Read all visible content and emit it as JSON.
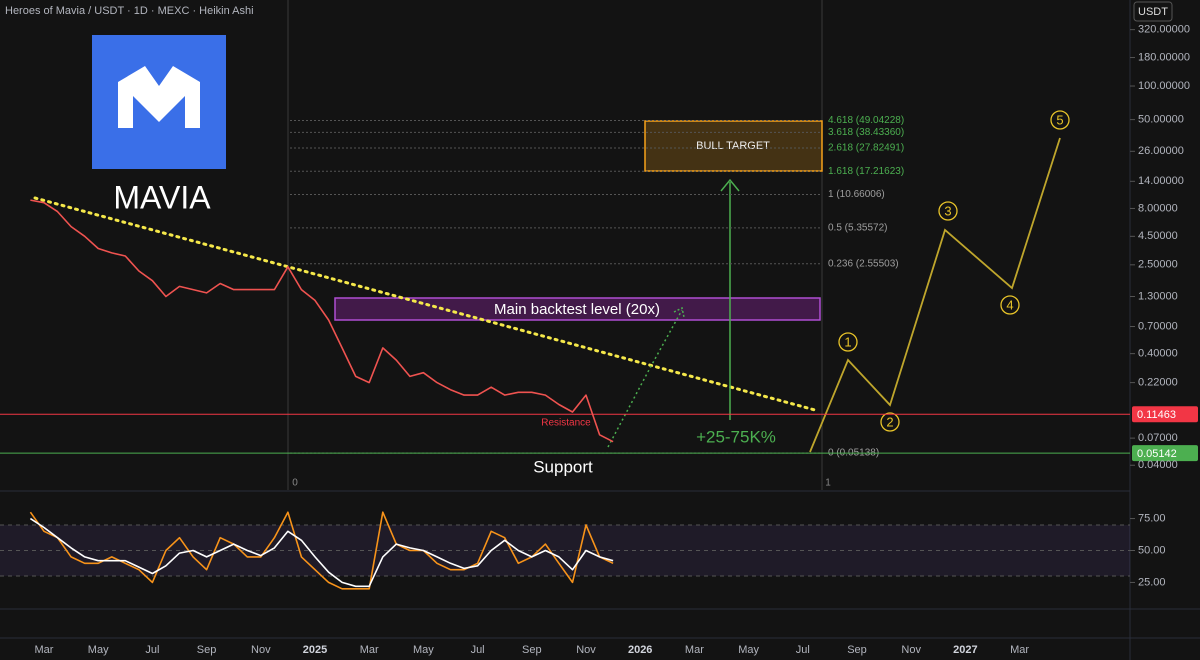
{
  "header": {
    "title": "Heroes of Mavia / USDT · 1D · MEXC · Heikin Ashi",
    "currency": "USDT",
    "logo_text": "MAVIA"
  },
  "annotations": {
    "bull_target": "BULL TARGET",
    "backtest": "Main backtest level (20x)",
    "gain": "+25-75K%",
    "support": "Support",
    "resistance": "Resistance",
    "fib_start": "0",
    "fib_end": "1",
    "waves": [
      "1",
      "2",
      "3",
      "4",
      "5"
    ]
  },
  "chart_data": [
    {
      "type": "line",
      "log_scale": true,
      "grid": false,
      "categories": [
        null,
        null,
        "Mar",
        null,
        null,
        null,
        "May",
        null,
        null,
        null,
        "Jul",
        null,
        null,
        null,
        "Sep",
        null,
        null,
        null,
        "Nov",
        null,
        null,
        null,
        "2025",
        null,
        null,
        null,
        "Mar",
        null,
        null,
        null,
        "May",
        null,
        null,
        null,
        "Jul",
        null,
        null,
        null,
        "Sep",
        null,
        null,
        null,
        "Nov",
        null,
        null,
        null,
        "2026",
        null,
        null,
        null,
        "Mar",
        null,
        null,
        null,
        "May",
        null,
        null,
        null,
        "Jul",
        null,
        null,
        null,
        "Sep",
        null,
        null,
        null,
        "Nov",
        null,
        null,
        null,
        "2027",
        null,
        null,
        null,
        "Mar",
        null,
        null,
        null
      ],
      "series": [
        {
          "color": "#ef5350",
          "values": [
            null,
            9.5,
            9.0,
            7.5,
            5.5,
            4.5,
            3.5,
            3.2,
            3.0,
            2.2,
            1.8,
            1.3,
            1.6,
            1.5,
            1.4,
            1.7,
            1.5,
            1.5,
            1.5,
            1.5,
            2.4,
            1.5,
            1.2,
            0.8,
            0.45,
            0.25,
            0.22,
            0.45,
            0.35,
            0.25,
            0.27,
            0.22,
            0.19,
            0.17,
            0.17,
            0.2,
            0.17,
            0.18,
            0.18,
            0.17,
            0.14,
            0.12,
            0.17,
            0.075,
            0.065,
            null,
            null,
            null,
            null,
            null,
            null,
            null,
            null,
            null,
            null,
            null,
            null,
            null,
            null,
            null,
            null,
            null,
            null,
            null,
            null,
            null,
            null,
            null,
            null,
            null,
            null,
            null,
            null,
            null,
            null,
            null,
            null,
            null
          ]
        }
      ],
      "ylim": [
        0.024,
        590
      ],
      "yticks": [
        {
          "value": 320,
          "label": "320.00000"
        },
        {
          "value": 180,
          "label": "180.00000"
        },
        {
          "value": 100,
          "label": "100.00000"
        },
        {
          "value": 50,
          "label": "50.00000"
        },
        {
          "value": 26,
          "label": "26.00000"
        },
        {
          "value": 14,
          "label": "14.00000"
        },
        {
          "value": 8,
          "label": "8.00000"
        },
        {
          "value": 4.5,
          "label": "4.50000"
        },
        {
          "value": 2.5,
          "label": "2.50000"
        },
        {
          "value": 1.3,
          "label": "1.30000"
        },
        {
          "value": 0.7,
          "label": "0.70000"
        },
        {
          "value": 0.4,
          "label": "0.40000"
        },
        {
          "value": 0.22,
          "label": "0.22000"
        },
        {
          "value": 0.07,
          "label": "0.07000"
        },
        {
          "value": 0.04,
          "label": "0.04000"
        }
      ],
      "price_lines": [
        {
          "value": 0.11463,
          "color": "#f23645"
        },
        {
          "value": 0.05142,
          "color": "#4caf50"
        }
      ],
      "fib_levels": [
        {
          "value": 49.04228,
          "label": "4.618 (49.04228)",
          "color": "#4caf50"
        },
        {
          "value": 38.4336,
          "label": "3.618 (38.43360)",
          "color": "#4caf50"
        },
        {
          "value": 27.82491,
          "label": "2.618 (27.82491)",
          "color": "#4caf50"
        },
        {
          "value": 17.21623,
          "label": "1.618 (17.21623)",
          "color": "#4caf50"
        },
        {
          "value": 10.66006,
          "label": "1 (10.66006)",
          "color": "#9e9e9e"
        },
        {
          "value": 5.35572,
          "label": "0.5 (5.35572)",
          "color": "#9e9e9e"
        },
        {
          "value": 2.55503,
          "label": "0.236 (2.55503)",
          "color": "#9e9e9e"
        },
        {
          "value": 0.05138,
          "label": "0 (0.05138)",
          "color": "#9e9e9e"
        }
      ]
    },
    {
      "type": "line",
      "series": [
        {
          "color": "#f7931a",
          "values": [
            null,
            80,
            65,
            60,
            45,
            40,
            40,
            45,
            40,
            35,
            25,
            50,
            60,
            45,
            35,
            60,
            55,
            45,
            45,
            60,
            80,
            45,
            35,
            25,
            20,
            20,
            20,
            80,
            55,
            50,
            50,
            40,
            35,
            35,
            40,
            65,
            60,
            40,
            45,
            55,
            40,
            25,
            70,
            45,
            40,
            null,
            null,
            null,
            null,
            null,
            null,
            null,
            null,
            null,
            null,
            null,
            null,
            null,
            null,
            null,
            null,
            null,
            null,
            null,
            null,
            null,
            null,
            null,
            null,
            null,
            null,
            null,
            null,
            null,
            null,
            null,
            null,
            null
          ]
        },
        {
          "color": "#ffffff",
          "values": [
            null,
            75,
            68,
            60,
            52,
            45,
            42,
            42,
            42,
            37,
            32,
            38,
            48,
            50,
            45,
            50,
            55,
            50,
            46,
            52,
            65,
            58,
            45,
            33,
            25,
            22,
            22,
            45,
            55,
            52,
            50,
            45,
            40,
            36,
            38,
            50,
            58,
            50,
            45,
            50,
            45,
            35,
            50,
            45,
            42,
            null,
            null,
            null,
            null,
            null,
            null,
            null,
            null,
            null,
            null,
            null,
            null,
            null,
            null,
            null,
            null,
            null,
            null,
            null,
            null,
            null,
            null,
            null,
            null,
            null,
            null,
            null,
            null,
            null,
            null,
            null,
            null,
            null
          ]
        }
      ],
      "ylim": [
        5,
        95
      ],
      "yticks": [
        {
          "value": 75,
          "label": "75.00"
        },
        {
          "value": 50,
          "label": "50.00"
        },
        {
          "value": 25,
          "label": "25.00"
        }
      ],
      "bands": [
        70,
        50,
        30
      ]
    }
  ]
}
